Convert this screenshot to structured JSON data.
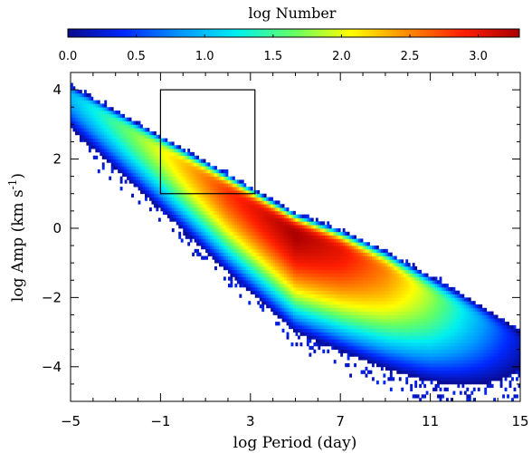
{
  "chart_data": {
    "type": "heatmap",
    "title": "",
    "xlabel": "log Period (day)",
    "ylabel_parts": [
      "log Amp (km s",
      "-1",
      ")"
    ],
    "xlim": [
      -5,
      15
    ],
    "ylim": [
      -5,
      4.5
    ],
    "x_ticks": [
      -5,
      -1,
      3,
      7,
      11,
      15
    ],
    "y_ticks": [
      -4,
      -2,
      0,
      2,
      4
    ],
    "grid": false,
    "colorbar": {
      "label": "log Number",
      "range": [
        0.0,
        3.3
      ],
      "ticks": [
        0.0,
        0.5,
        1.0,
        1.5,
        2.0,
        2.5,
        3.0
      ],
      "tick_labels": [
        "0.0",
        "0.5",
        "1.0",
        "1.5",
        "2.0",
        "2.5",
        "3.0"
      ],
      "colormap": "rainbow (dark blue to dark red)",
      "stops": [
        "#0a0a8c",
        "#0028ff",
        "#0096ff",
        "#00f0f0",
        "#64ff64",
        "#ffff00",
        "#ff8c00",
        "#ff1e00",
        "#aa0000"
      ]
    },
    "density_ridge": {
      "x": [
        -5.0,
        -1.0,
        2.0,
        5.0,
        7.0,
        9.0,
        11.0,
        14.0
      ],
      "y": [
        3.8,
        2.2,
        1.0,
        -0.2,
        -0.7,
        -1.3,
        -2.0,
        -3.0
      ],
      "peak_log_number": [
        1.0,
        2.0,
        2.8,
        3.3,
        3.0,
        2.5,
        1.8,
        0.6
      ]
    },
    "highlight_box": {
      "x": [
        -1.0,
        3.2
      ],
      "y": [
        1.0,
        4.0
      ]
    }
  }
}
